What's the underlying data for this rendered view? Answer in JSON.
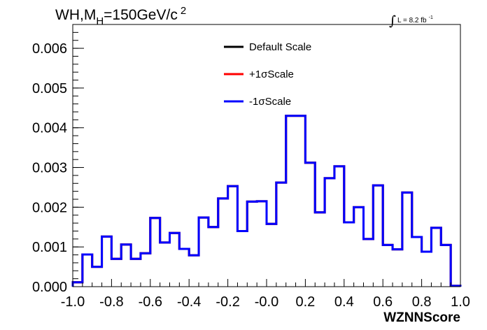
{
  "chart_data": {
    "type": "step",
    "title_main": "WH,M",
    "title_sub": "H",
    "title_rest": "=150GeV/c",
    "title_sup": "2",
    "lumi_main": "L = 8.2 fb",
    "lumi_sup": "-1",
    "integral_symbol": "∫",
    "xlabel": "WZNNScore",
    "ylabel": "",
    "xlim": [
      -1.0,
      1.0
    ],
    "ylim": [
      0,
      0.0066
    ],
    "x_ticks": [
      -1.0,
      -0.8,
      -0.6,
      -0.4,
      -0.2,
      0.0,
      0.2,
      0.4,
      0.6,
      0.8,
      1.0
    ],
    "x_tick_labels": [
      "-1.0",
      "-0.8",
      "-0.6",
      "-0.4",
      "-0.2",
      "-0.0",
      "0.2",
      "0.4",
      "0.6",
      "0.8",
      "1.0"
    ],
    "y_ticks": [
      0,
      0.001,
      0.002,
      0.003,
      0.004,
      0.005,
      0.006
    ],
    "y_tick_labels": [
      "0.000",
      "0.001",
      "0.002",
      "0.003",
      "0.004",
      "0.005",
      "0.006"
    ],
    "bin_edges": [
      -1.0,
      -0.95,
      -0.9,
      -0.85,
      -0.8,
      -0.75,
      -0.7,
      -0.65,
      -0.6,
      -0.55,
      -0.5,
      -0.45,
      -0.4,
      -0.35,
      -0.3,
      -0.25,
      -0.2,
      -0.15,
      -0.1,
      -0.05,
      0.0,
      0.05,
      0.1,
      0.15,
      0.2,
      0.25,
      0.3,
      0.35,
      0.4,
      0.45,
      0.5,
      0.55,
      0.6,
      0.65,
      0.7,
      0.75,
      0.8,
      0.85,
      0.9,
      0.95,
      1.0
    ],
    "legend_position": "top-center",
    "series": [
      {
        "name": "Default Scale",
        "color": "#000000",
        "values": [
          0.00011,
          0.00081,
          0.0005,
          0.00126,
          0.0007,
          0.00106,
          0.0007,
          0.00084,
          0.00173,
          0.00111,
          0.00135,
          0.00095,
          0.00079,
          0.00174,
          0.0015,
          0.00222,
          0.00253,
          0.0014,
          0.00214,
          0.00215,
          0.00158,
          0.00262,
          0.0043,
          0.0043,
          0.00312,
          0.00187,
          0.00273,
          0.00303,
          0.00162,
          0.002,
          0.0012,
          0.00255,
          0.00105,
          0.00094,
          0.00237,
          0.00125,
          0.00088,
          0.00148,
          0.00105,
          2e-05
        ]
      },
      {
        "name": "+1σScale",
        "color": "#ff0000",
        "values": [
          0.00011,
          0.00081,
          0.0005,
          0.00126,
          0.0007,
          0.00106,
          0.0007,
          0.00084,
          0.00173,
          0.00111,
          0.00135,
          0.00095,
          0.00079,
          0.00174,
          0.0015,
          0.00222,
          0.00253,
          0.0014,
          0.00214,
          0.00215,
          0.00158,
          0.00262,
          0.0043,
          0.0043,
          0.00312,
          0.00187,
          0.00273,
          0.00303,
          0.00162,
          0.002,
          0.0012,
          0.00255,
          0.00105,
          0.00094,
          0.00237,
          0.00125,
          0.00088,
          0.00148,
          0.00105,
          2e-05
        ]
      },
      {
        "name": "-1σScale",
        "color": "#0000ff",
        "values": [
          0.00011,
          0.00081,
          0.0005,
          0.00126,
          0.0007,
          0.00106,
          0.0007,
          0.00084,
          0.00173,
          0.00111,
          0.00135,
          0.00095,
          0.00079,
          0.00174,
          0.0015,
          0.00222,
          0.00253,
          0.0014,
          0.00214,
          0.00215,
          0.00158,
          0.00262,
          0.0043,
          0.0043,
          0.00312,
          0.00187,
          0.00273,
          0.00303,
          0.00162,
          0.002,
          0.0012,
          0.00255,
          0.00105,
          0.00094,
          0.00237,
          0.00125,
          0.00088,
          0.00148,
          0.00105,
          2e-05
        ]
      }
    ]
  }
}
